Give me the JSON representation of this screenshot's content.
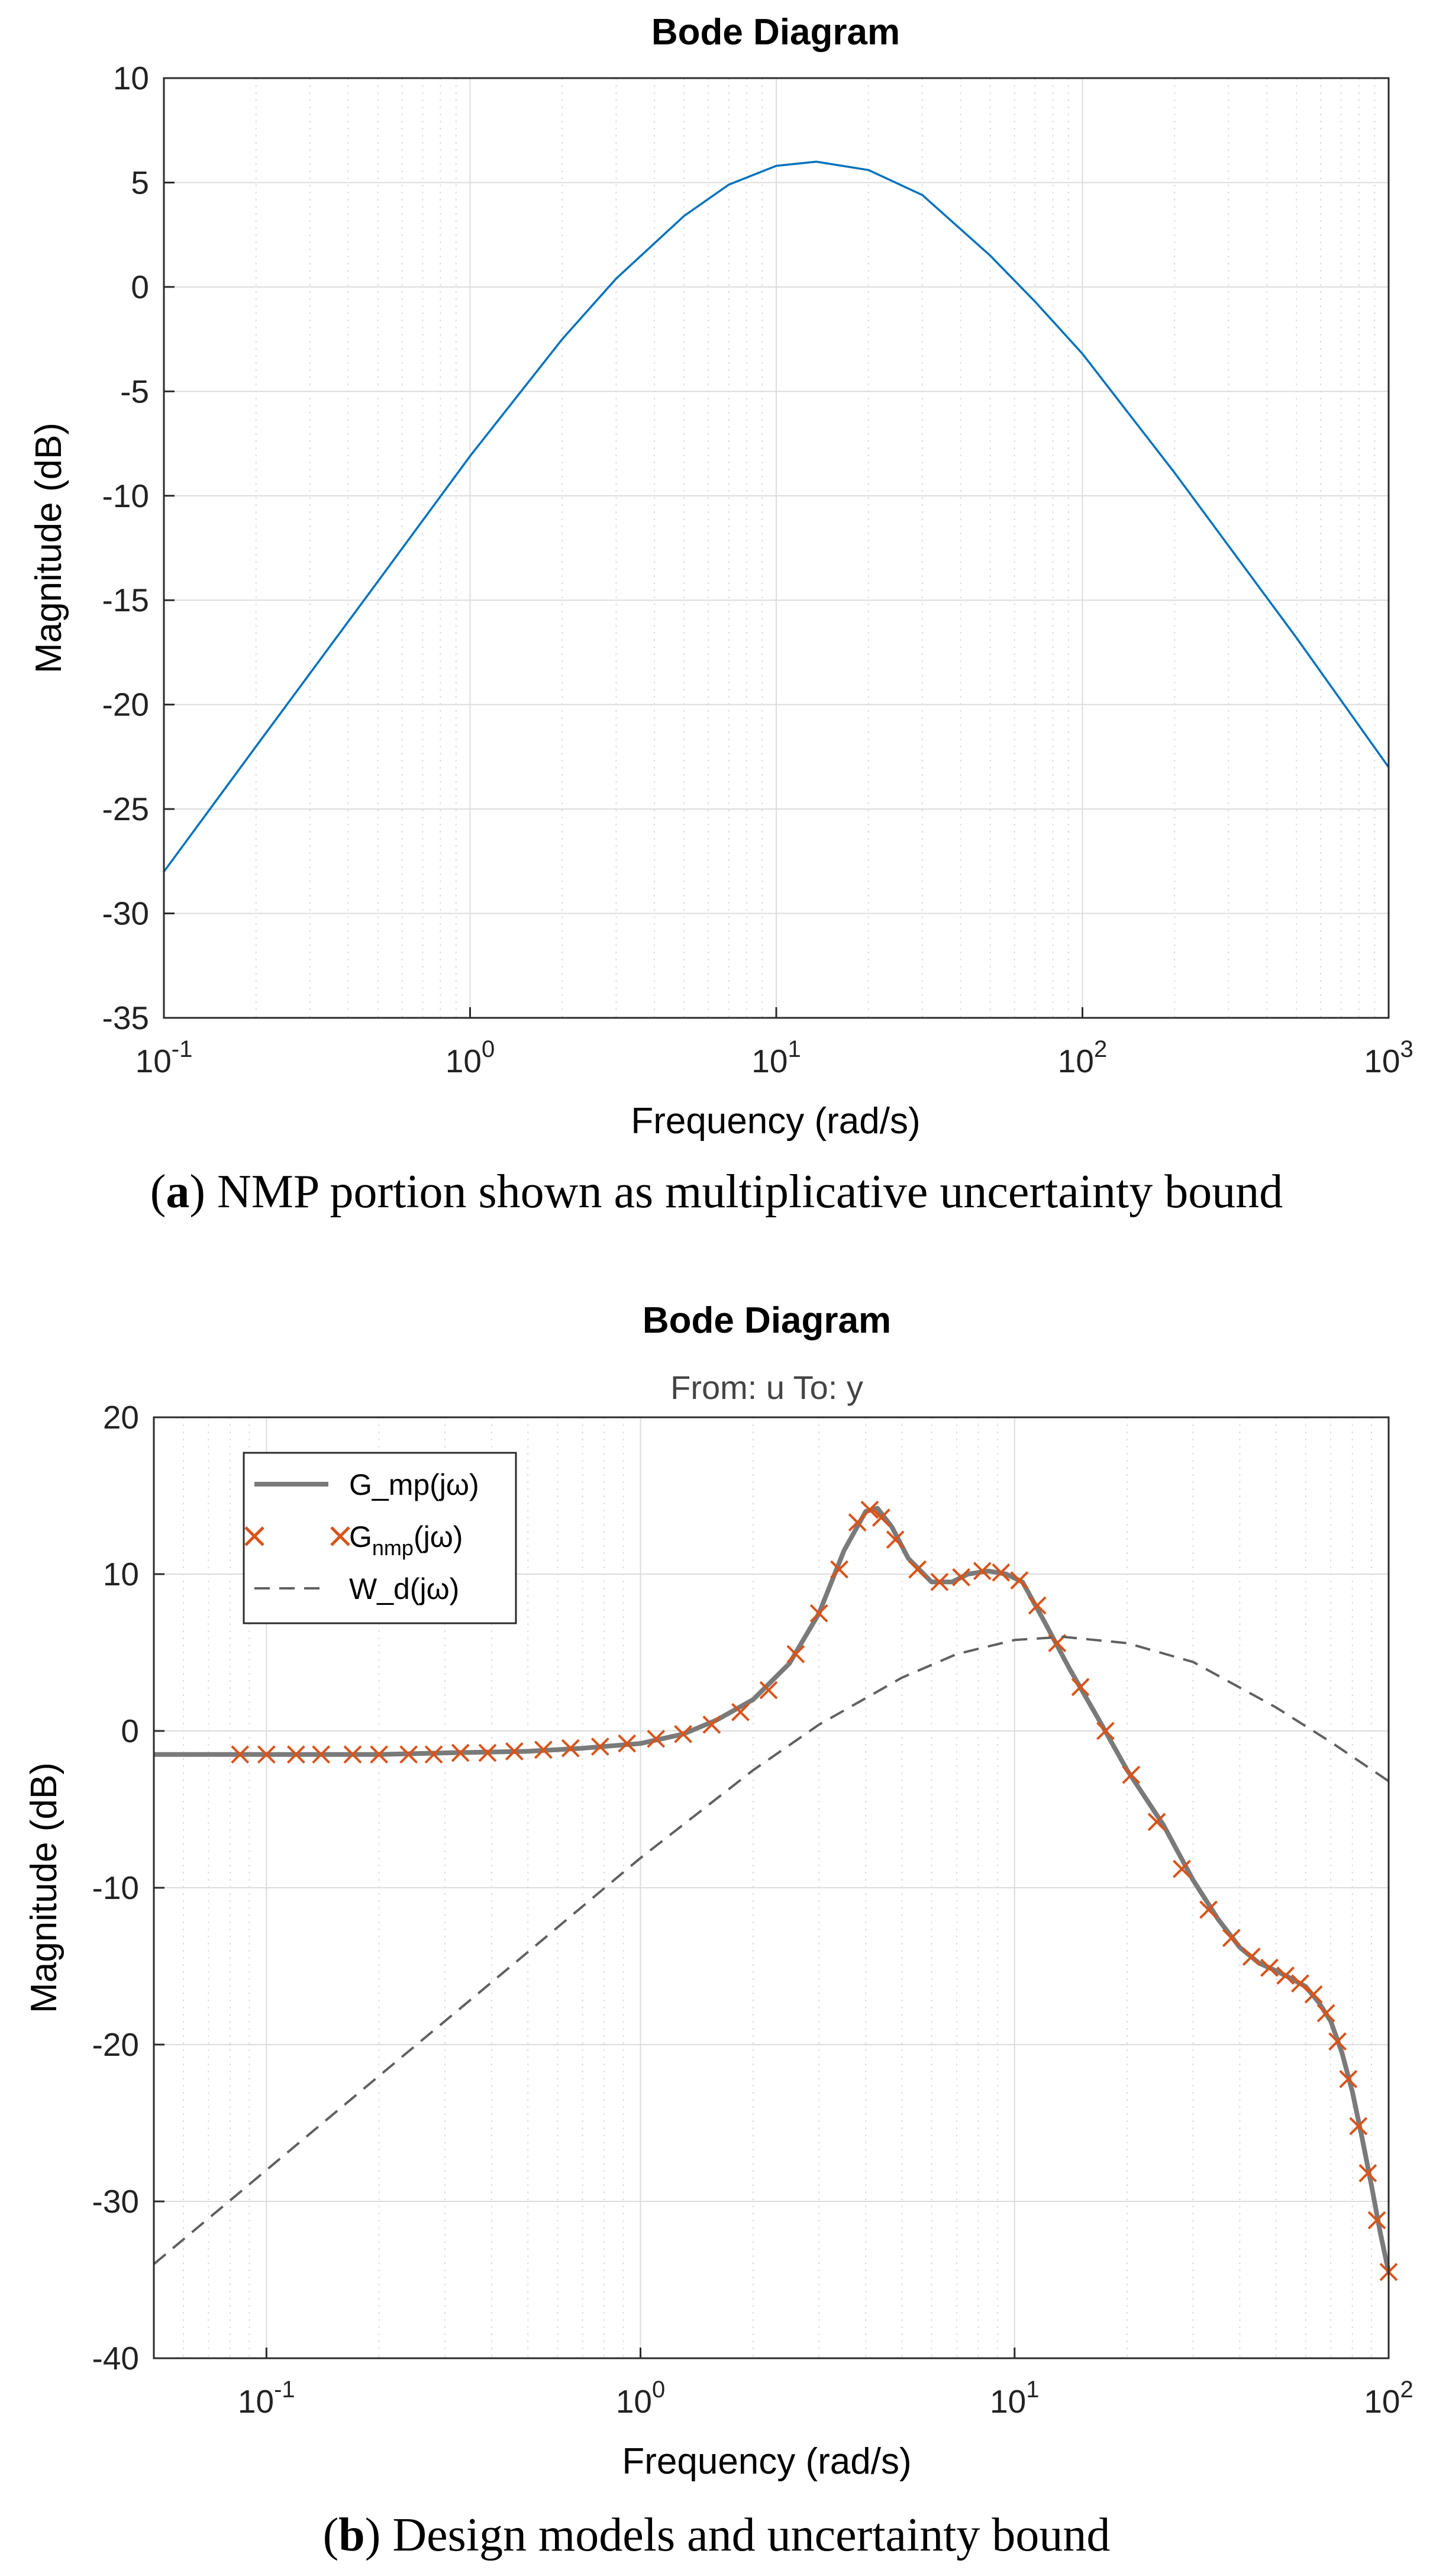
{
  "captions": {
    "a_label": "a",
    "a_text": " NMP portion shown as multiplicative uncertainty bound",
    "b_label": "b",
    "b_text": " Design models and uncertainty bound"
  },
  "colors": {
    "blue": "#0072BD",
    "orange": "#D95319",
    "gray": "#7a7a7a",
    "dashed": "#606060",
    "grid": "#dcdcdc"
  },
  "chart_data": [
    {
      "type": "line",
      "title": "Bode Diagram",
      "xlabel": "Frequency  (rad/s)",
      "ylabel": "Magnitude (dB)",
      "xscale": "log",
      "xlim": [
        0.1,
        1000
      ],
      "ylim": [
        -35,
        10
      ],
      "xticks": [
        0.1,
        1,
        10,
        100,
        1000
      ],
      "xtick_labels": [
        [
          "10",
          "-1"
        ],
        [
          "10",
          "0"
        ],
        [
          "10",
          "1"
        ],
        [
          "10",
          "2"
        ],
        [
          "10",
          "3"
        ]
      ],
      "yticks": [
        10,
        5,
        0,
        -5,
        -10,
        -15,
        -20,
        -25,
        -30,
        -35
      ],
      "ytick_labels": [
        "10",
        "5",
        "0",
        "-5",
        "-10",
        "-15",
        "-20",
        "-25",
        "-30",
        "-35"
      ],
      "grid": true,
      "series": [
        {
          "name": "W_d(jω)",
          "style": "solid",
          "color": "#0072BD",
          "x": [
            0.1,
            0.2,
            0.5,
            1,
            2,
            3,
            5,
            7,
            10,
            13.5,
            20,
            30,
            50,
            70,
            100,
            200,
            500,
            1000
          ],
          "y": [
            -28,
            -22,
            -14.1,
            -8.1,
            -2.5,
            0.4,
            3.4,
            4.9,
            5.8,
            6,
            5.6,
            4.4,
            1.5,
            -0.7,
            -3.2,
            -8.9,
            -16.8,
            -23
          ]
        }
      ]
    },
    {
      "type": "line",
      "title": "Bode Diagram",
      "subtitle": "From: u  To: y",
      "xlabel": "Frequency  (rad/s)",
      "ylabel": "Magnitude (dB)",
      "xscale": "log",
      "xlim": [
        0.05,
        100
      ],
      "ylim": [
        -40,
        20
      ],
      "xticks": [
        0.1,
        1,
        10,
        100
      ],
      "xtick_labels": [
        [
          "10",
          "-1"
        ],
        [
          "10",
          "0"
        ],
        [
          "10",
          "1"
        ],
        [
          "10",
          "2"
        ]
      ],
      "yticks": [
        20,
        10,
        0,
        -10,
        -20,
        -30,
        -40
      ],
      "ytick_labels": [
        "20",
        "10",
        "0",
        "-10",
        "-20",
        "-30",
        "-40"
      ],
      "grid": true,
      "legend": {
        "placement": "top-left",
        "entries": [
          {
            "label": "G_mp(jω)",
            "style": "solid"
          },
          {
            "label_main": "G",
            "label_sub": "nmp",
            "label_rest": "(jω)",
            "style": "marker-x"
          },
          {
            "label": "W_d(jω)",
            "style": "dashed"
          }
        ]
      },
      "series": [
        {
          "name": "G_mp(jω)",
          "style": "solid",
          "color": "#7a7a7a",
          "x": [
            0.05,
            0.1,
            0.2,
            0.3,
            0.5,
            0.7,
            1,
            1.3,
            1.6,
            2,
            2.5,
            3,
            3.5,
            4,
            4.3,
            4.7,
            5.2,
            6,
            6.8,
            7.5,
            8.5,
            9.5,
            10.5,
            12,
            14,
            17,
            20,
            25,
            30,
            35,
            40,
            45,
            50,
            55,
            60,
            65,
            70,
            75,
            80,
            85,
            90,
            95,
            100
          ],
          "y": [
            -1.5,
            -1.5,
            -1.5,
            -1.4,
            -1.3,
            -1.1,
            -0.8,
            -0.2,
            0.7,
            2,
            4.3,
            7.5,
            11.5,
            14,
            14.2,
            13,
            11,
            9.5,
            9.5,
            10,
            10.2,
            10,
            9.5,
            7,
            4,
            0.5,
            -2.5,
            -6,
            -9.5,
            -12,
            -13.8,
            -14.8,
            -15.3,
            -15.8,
            -16.3,
            -17.3,
            -18.5,
            -20.5,
            -23,
            -26,
            -29,
            -32,
            -34.5
          ]
        },
        {
          "name": "G_nmp(jω)",
          "style": "marker-x",
          "color": "#D95319",
          "x": [
            0.085,
            0.1,
            0.12,
            0.14,
            0.17,
            0.2,
            0.24,
            0.28,
            0.33,
            0.39,
            0.46,
            0.55,
            0.65,
            0.78,
            0.92,
            1.1,
            1.3,
            1.55,
            1.85,
            2.2,
            2.6,
            3,
            3.4,
            3.8,
            4.1,
            4.4,
            4.8,
            5.5,
            6.3,
            7.2,
            8.2,
            9.2,
            10.3,
            11.5,
            13,
            15,
            17.5,
            20.5,
            24,
            28,
            33,
            38,
            43,
            48,
            53,
            58,
            63,
            68,
            73,
            78,
            83,
            88,
            93,
            100
          ],
          "y": [
            -1.5,
            -1.5,
            -1.5,
            -1.5,
            -1.5,
            -1.5,
            -1.5,
            -1.5,
            -1.4,
            -1.4,
            -1.3,
            -1.2,
            -1.1,
            -1,
            -0.8,
            -0.5,
            -0.2,
            0.4,
            1.2,
            2.6,
            4.9,
            7.5,
            10.3,
            13.3,
            14.1,
            13.6,
            12.2,
            10.3,
            9.5,
            9.8,
            10.2,
            10.1,
            9.6,
            8,
            5.6,
            2.8,
            0,
            -2.8,
            -5.8,
            -8.8,
            -11.4,
            -13.2,
            -14.4,
            -15.1,
            -15.6,
            -16.1,
            -16.8,
            -18,
            -19.8,
            -22.2,
            -25.2,
            -28.2,
            -31.2,
            -34.5
          ]
        },
        {
          "name": "W_d(jω)",
          "style": "dashed",
          "color": "#606060",
          "x": [
            0.05,
            0.1,
            0.2,
            0.5,
            1,
            2,
            3,
            5,
            7,
            10,
            13.5,
            20,
            30,
            50,
            70,
            100
          ],
          "y": [
            -34,
            -28,
            -22,
            -14.1,
            -8.1,
            -2.5,
            0.4,
            3.4,
            4.9,
            5.8,
            6,
            5.6,
            4.4,
            1.5,
            -0.7,
            -3.2
          ]
        }
      ]
    }
  ]
}
